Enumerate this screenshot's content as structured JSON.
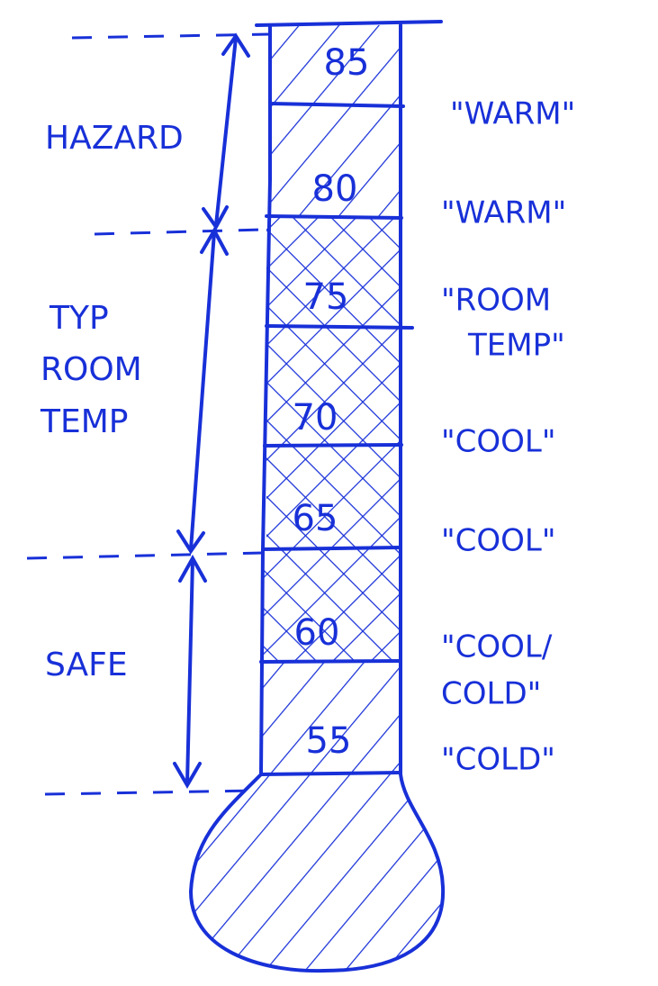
{
  "zones": [
    {
      "lines": [
        "HAZARD"
      ]
    },
    {
      "lines": [
        "TYP",
        "ROOM",
        "TEMP"
      ]
    },
    {
      "lines": [
        "SAFE"
      ]
    }
  ],
  "segments": [
    {
      "temp": "85",
      "description": [
        "\"WARM\""
      ]
    },
    {
      "temp": "80",
      "description": [
        "\"WARM\""
      ]
    },
    {
      "temp": "75",
      "description": [
        "\"ROOM",
        "TEMP\""
      ]
    },
    {
      "temp": "70",
      "description": [
        "\"COOL\""
      ]
    },
    {
      "temp": "65",
      "description": [
        "\"COOL\""
      ]
    },
    {
      "temp": "60",
      "description": [
        "\"COOL/",
        "COLD\""
      ]
    },
    {
      "temp": "55",
      "description": [
        "\"COLD\""
      ]
    }
  ]
}
